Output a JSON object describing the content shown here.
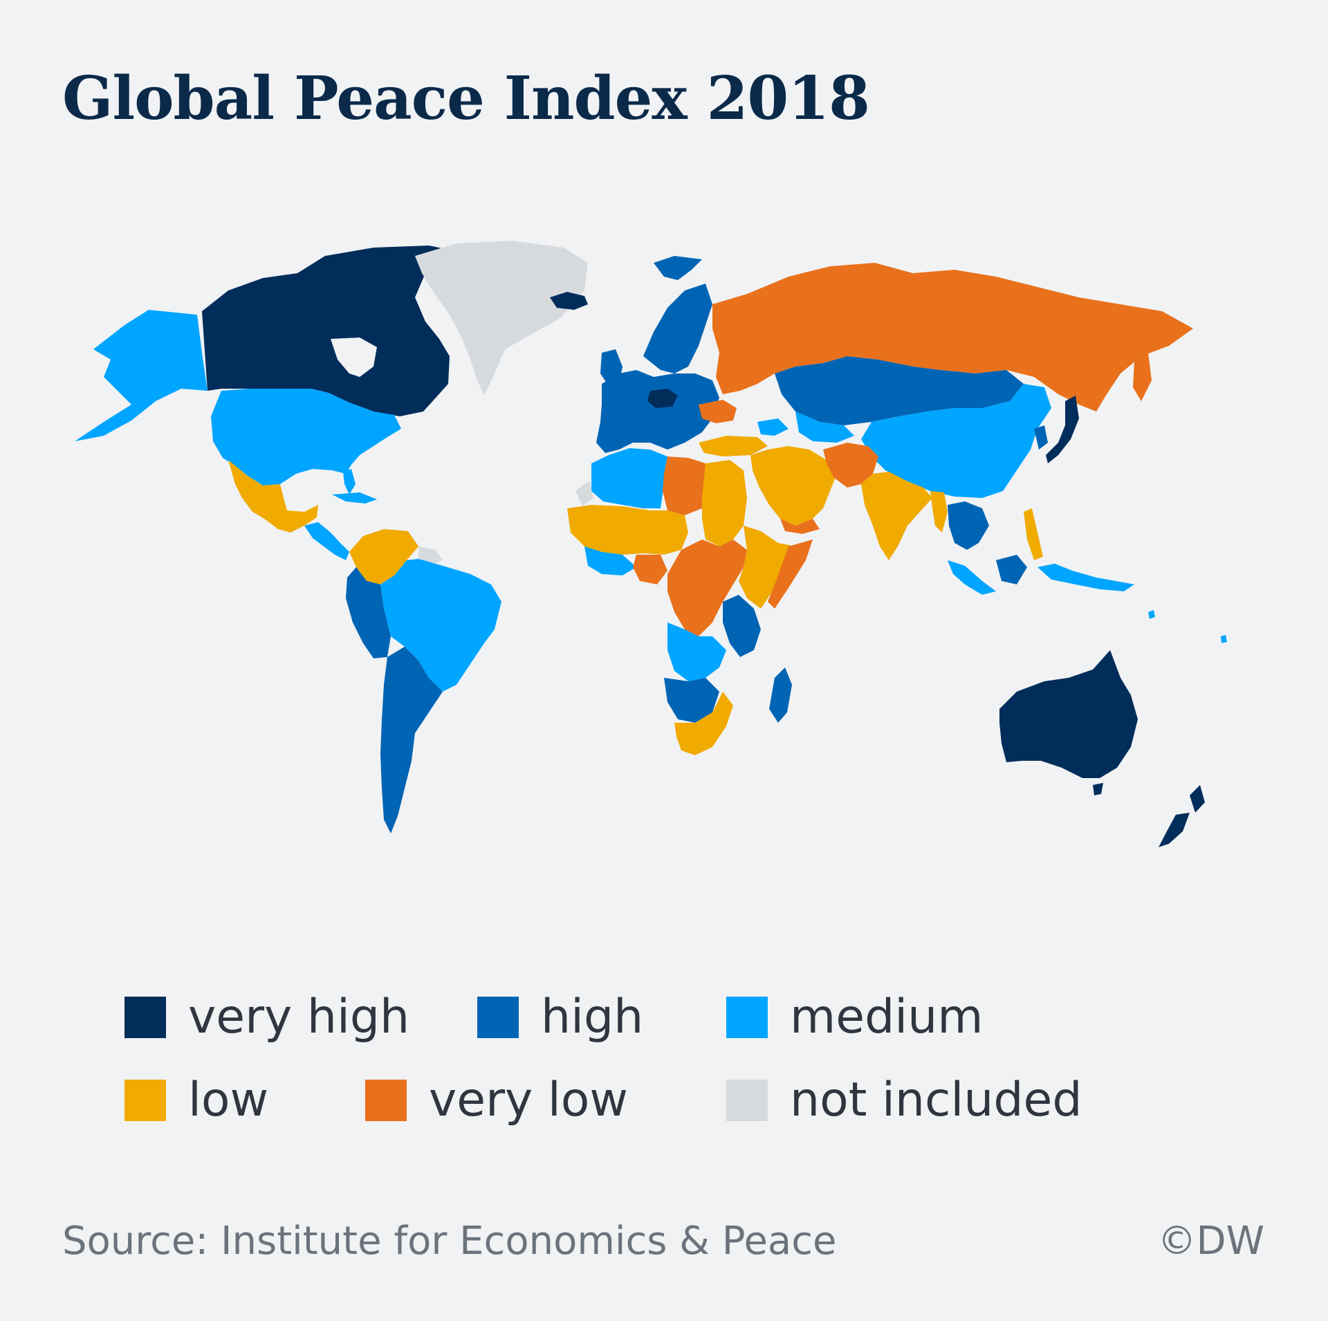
{
  "title": "Global Peace Index 2018",
  "legend": {
    "items": [
      {
        "label": "very high",
        "color": "#002d5a"
      },
      {
        "label": "high",
        "color": "#0064b4"
      },
      {
        "label": "medium",
        "color": "#00a5ff"
      },
      {
        "label": "low",
        "color": "#f0aa00"
      },
      {
        "label": "very low",
        "color": "#e9711c"
      },
      {
        "label": "not included",
        "color": "#d7dadd"
      }
    ]
  },
  "regions": [
    {
      "name": "Canada",
      "level": "very high"
    },
    {
      "name": "United States",
      "level": "medium"
    },
    {
      "name": "Alaska",
      "level": "medium"
    },
    {
      "name": "Greenland",
      "level": "not included"
    },
    {
      "name": "Mexico",
      "level": "low"
    },
    {
      "name": "Central America",
      "level": "medium"
    },
    {
      "name": "Venezuela and Colombia",
      "level": "low"
    },
    {
      "name": "Brazil",
      "level": "medium"
    },
    {
      "name": "Southern South America",
      "level": "high"
    },
    {
      "name": "Europe",
      "level": "high"
    },
    {
      "name": "Iceland",
      "level": "very high"
    },
    {
      "name": "Russia",
      "level": "very low"
    },
    {
      "name": "Kazakhstan and Mongolia",
      "level": "high"
    },
    {
      "name": "China",
      "level": "medium"
    },
    {
      "name": "Japan",
      "level": "very high"
    },
    {
      "name": "Middle East",
      "level": "low"
    },
    {
      "name": "Afghanistan and Pakistan",
      "level": "very low"
    },
    {
      "name": "India",
      "level": "low"
    },
    {
      "name": "Southeast Asia",
      "level": "high"
    },
    {
      "name": "Philippines",
      "level": "low"
    },
    {
      "name": "North Africa (West)",
      "level": "medium"
    },
    {
      "name": "Libya",
      "level": "very low"
    },
    {
      "name": "Sahel",
      "level": "low"
    },
    {
      "name": "Central Africa",
      "level": "very low"
    },
    {
      "name": "East Africa",
      "level": "low"
    },
    {
      "name": "Southern Africa",
      "level": "medium"
    },
    {
      "name": "South Africa",
      "level": "low"
    },
    {
      "name": "Madagascar",
      "level": "high"
    },
    {
      "name": "Australia",
      "level": "very high"
    },
    {
      "name": "New Zealand",
      "level": "very high"
    }
  ],
  "source": "Source: Institute for Economics & Peace",
  "credit": "©DW"
}
